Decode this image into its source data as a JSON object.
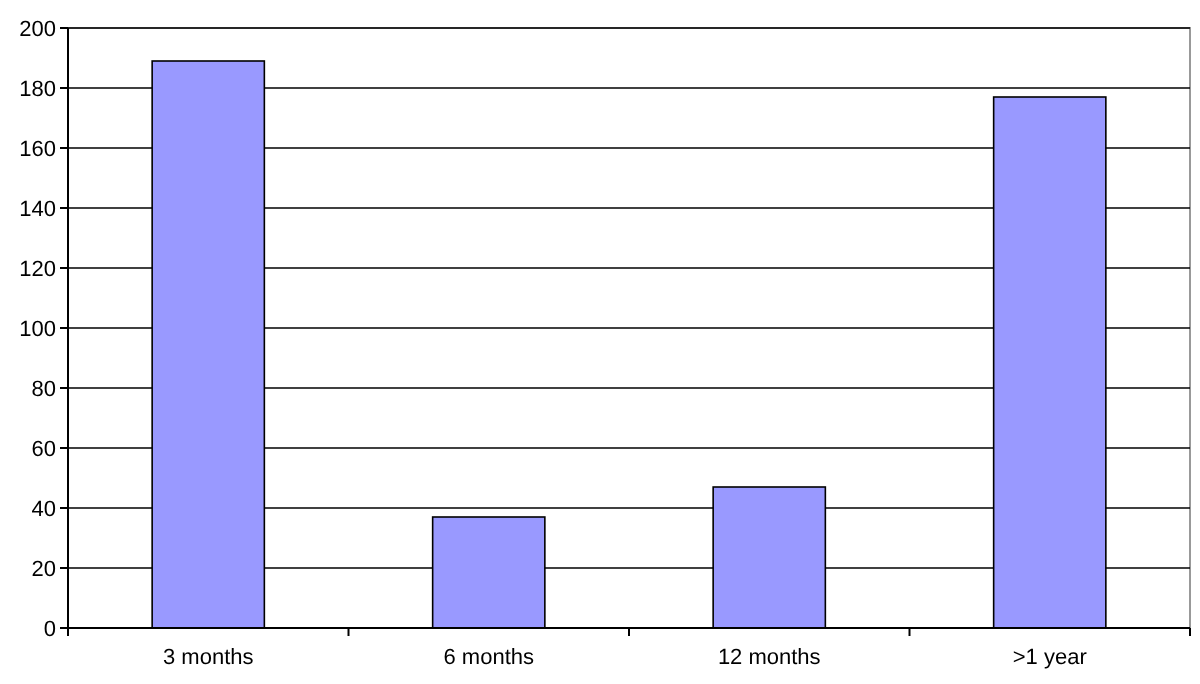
{
  "chart_data": {
    "type": "bar",
    "categories": [
      "3 months",
      "6 months",
      "12 months",
      ">1 year"
    ],
    "values": [
      189,
      37,
      47,
      177
    ],
    "color": "#9999ff",
    "ylim": [
      0,
      200
    ],
    "yticks": [
      0,
      20,
      40,
      60,
      80,
      100,
      120,
      140,
      160,
      180,
      200
    ],
    "grid": "y"
  }
}
